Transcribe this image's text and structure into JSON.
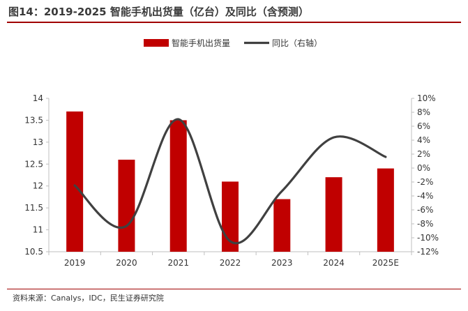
{
  "header": {
    "title": "图14：2019-2025 智能手机出货量（亿台）及同比（含预测）"
  },
  "footer": {
    "source": "资料来源：Canalys，IDC，民生证券研究院"
  },
  "colors": {
    "bar": "#c00000",
    "line": "#404040",
    "title_rule": "#a00000",
    "axis": "#bfbfbf"
  },
  "chart_data": {
    "type": "bar+line",
    "title": "2019-2025 智能手机出货量（亿台）及同比（含预测）",
    "categories": [
      "2019",
      "2020",
      "2021",
      "2022",
      "2023",
      "2024",
      "2025E"
    ],
    "series": [
      {
        "name": "智能手机出货量",
        "type": "bar",
        "axis": "left",
        "values": [
          13.7,
          12.6,
          13.5,
          12.1,
          11.7,
          12.2,
          12.4
        ]
      },
      {
        "name": "同比（右轴）",
        "type": "line",
        "axis": "right",
        "smooth": true,
        "values": [
          -2.5,
          -8.3,
          7.0,
          -10.5,
          -3.3,
          4.4,
          1.6
        ]
      }
    ],
    "y_left": {
      "min": 10.5,
      "max": 14,
      "step": 0.5,
      "ticks": [
        "10.5",
        "11",
        "11.5",
        "12",
        "12.5",
        "13",
        "13.5",
        "14"
      ]
    },
    "y_right": {
      "min": -12,
      "max": 10,
      "step": 2,
      "ticks": [
        "-12%",
        "-10%",
        "-8%",
        "-6%",
        "-4%",
        "-2%",
        "0%",
        "2%",
        "4%",
        "6%",
        "8%",
        "10%"
      ]
    },
    "legend": {
      "position": "top-center",
      "items": [
        "智能手机出货量",
        "同比（右轴）"
      ]
    },
    "grid": false
  }
}
